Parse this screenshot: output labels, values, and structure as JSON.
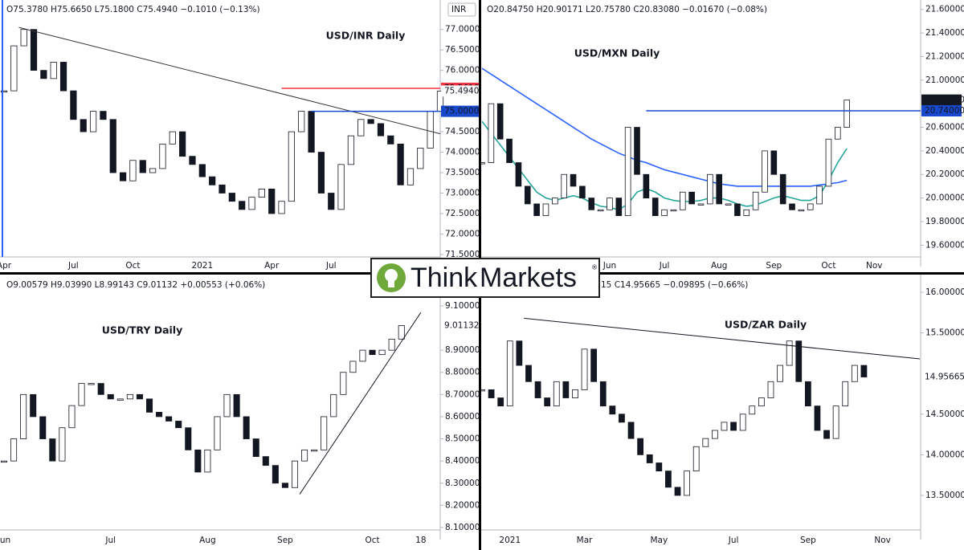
{
  "chart_data": [
    {
      "type": "candlestick",
      "title": "USD/INR Daily",
      "ohlc": "O75.3780 H75.6650 L75.1800 C75.4940 −0.1010 (−0.13%)",
      "currency": "INR",
      "categories": [
        "Apr",
        null,
        null,
        null,
        null,
        null,
        null,
        "Jul",
        null,
        null,
        null,
        null,
        null,
        "Oct",
        null,
        null,
        null,
        null,
        null,
        null,
        "2021",
        null,
        null,
        null,
        null,
        null,
        null,
        "Apr",
        null,
        null,
        null,
        null,
        null,
        "Jul",
        null,
        null,
        null,
        null,
        null,
        null,
        null,
        null,
        null,
        null,
        null
      ],
      "values": [
        75.5,
        76.6,
        77.0,
        76.0,
        75.8,
        76.2,
        75.5,
        74.8,
        74.5,
        75.0,
        74.8,
        73.5,
        73.3,
        73.8,
        73.5,
        73.6,
        74.2,
        74.5,
        73.9,
        73.7,
        73.4,
        73.2,
        73.0,
        72.8,
        72.6,
        72.9,
        73.1,
        72.5,
        72.8,
        74.5,
        75.0,
        74.0,
        73.0,
        72.6,
        73.7,
        74.4,
        74.8,
        74.7,
        74.4,
        74.2,
        73.2,
        73.6,
        74.1,
        75.0,
        75.494
      ],
      "ylim": [
        71.44,
        77.72
      ],
      "yticks": [
        {
          "value": 77,
          "label": "77.0000"
        },
        {
          "value": 76.5,
          "label": "76.5000"
        },
        {
          "value": 76,
          "label": "76.0000"
        },
        {
          "value": 74.5,
          "label": "74.5000"
        },
        {
          "value": 74,
          "label": "74.0000"
        },
        {
          "value": 73.5,
          "label": "73.5000"
        },
        {
          "value": 73,
          "label": "73.0000"
        },
        {
          "value": 72.5,
          "label": "72.5000"
        },
        {
          "value": 72,
          "label": "72.0000"
        },
        {
          "value": 71.5,
          "label": "71.5000"
        }
      ],
      "price_labels": [
        {
          "value": 75.561,
          "label": "75.5610",
          "color": "#f23645",
          "text_color": "#ffffff",
          "line_from": 28
        },
        {
          "value": 75.494,
          "label": "75.4940",
          "color": "#ffffff",
          "text_color": "#131722"
        },
        {
          "value": 75.0,
          "label": "75.0000",
          "color": "#1848cc",
          "text_color": "#ffffff",
          "line_from": 31
        }
      ],
      "trendlines": [
        {
          "from": [
            1.5,
            77.05
          ],
          "to": [
            44,
            74.45
          ],
          "color": "#333333"
        }
      ]
    },
    {
      "type": "candlestick",
      "title": "USD/MXN Daily",
      "ohlc": "O20.84750 H20.90171 L20.75780 C20.83080 −0.01670 (−0.08%)",
      "categories": [
        null,
        null,
        null,
        null,
        null,
        null,
        null,
        null,
        null,
        null,
        null,
        null,
        null,
        null,
        "Jun",
        null,
        null,
        null,
        null,
        null,
        "Jul",
        null,
        null,
        null,
        null,
        null,
        "Aug",
        null,
        null,
        null,
        null,
        null,
        "Sep",
        null,
        null,
        null,
        null,
        null,
        "Oct",
        null,
        null,
        null,
        null,
        "Nov",
        null,
        null,
        null,
        null,
        null
      ],
      "values": [
        20.3,
        20.8,
        20.5,
        20.3,
        20.1,
        19.95,
        19.85,
        19.95,
        20.0,
        20.2,
        20.1,
        20.0,
        19.9,
        19.9,
        20.0,
        19.85,
        20.6,
        20.2,
        20.0,
        19.85,
        19.9,
        19.9,
        20.05,
        19.95,
        19.95,
        20.2,
        19.95,
        19.95,
        19.85,
        19.9,
        20.05,
        20.4,
        20.2,
        19.95,
        19.9,
        19.9,
        19.95,
        20.1,
        20.5,
        20.6,
        20.8308,
        null,
        null,
        null,
        null,
        null,
        null,
        null,
        null
      ],
      "ma_lines": [
        {
          "color": "#2962ff",
          "values": [
            21.1,
            21.05,
            21.0,
            20.95,
            20.9,
            20.85,
            20.8,
            20.75,
            20.7,
            20.65,
            20.6,
            20.55,
            20.5,
            20.46,
            20.42,
            20.38,
            20.35,
            20.32,
            20.3,
            20.27,
            20.24,
            20.22,
            20.2,
            20.18,
            20.16,
            20.14,
            20.12,
            20.11,
            20.1,
            20.1,
            20.1,
            20.1,
            20.1,
            20.1,
            20.1,
            20.1,
            20.1,
            20.11,
            20.12,
            20.13,
            20.15
          ]
        },
        {
          "color": "#26a69a",
          "values": [
            20.65,
            20.55,
            20.45,
            20.35,
            20.25,
            20.15,
            20.05,
            20.0,
            19.98,
            20.0,
            20.02,
            20.0,
            19.96,
            19.93,
            19.92,
            19.9,
            19.95,
            20.05,
            20.08,
            20.05,
            20.0,
            19.98,
            19.97,
            19.97,
            19.98,
            20.0,
            20.0,
            19.98,
            19.95,
            19.93,
            19.94,
            19.97,
            20.0,
            20.02,
            20.0,
            19.98,
            19.98,
            20.02,
            20.15,
            20.3,
            20.42
          ]
        }
      ],
      "ylim": [
        19.5,
        21.68
      ],
      "yticks": [
        {
          "value": 21.6,
          "label": "21.60000"
        },
        {
          "value": 21.4,
          "label": "21.40000"
        },
        {
          "value": 21.2,
          "label": "21.20000"
        },
        {
          "value": 21.0,
          "label": "21.00000"
        },
        {
          "value": 20.6,
          "label": "20.60000"
        },
        {
          "value": 20.4,
          "label": "20.40000"
        },
        {
          "value": 20.2,
          "label": "20.20000"
        },
        {
          "value": 20.0,
          "label": "20.00000"
        },
        {
          "value": 19.8,
          "label": "19.80000"
        },
        {
          "value": 19.6,
          "label": "19.60000"
        }
      ],
      "price_labels": [
        {
          "value": 20.8308,
          "label": "20.83080",
          "color": "#131722",
          "text_color": "#ffffff"
        },
        {
          "value": 20.74,
          "label": "20.74000",
          "color": "#1848cc",
          "text_color": "#ffffff",
          "line_from": 18
        }
      ],
      "trendlines": []
    },
    {
      "type": "candlestick",
      "title": "USD/TRY Daily",
      "ohlc": "O9.00579 H9.03990 L8.99143 C9.01132 +0.00553 (+0.06%)",
      "categories": [
        "Jun",
        null,
        null,
        null,
        null,
        null,
        null,
        null,
        null,
        null,
        null,
        "Jul",
        null,
        null,
        null,
        null,
        null,
        null,
        null,
        null,
        null,
        "Aug",
        null,
        null,
        null,
        null,
        null,
        null,
        null,
        "Sep",
        null,
        null,
        null,
        null,
        null,
        null,
        null,
        null,
        "Oct",
        null,
        null,
        null,
        null,
        "18",
        null,
        null
      ],
      "values": [
        8.4,
        8.5,
        8.7,
        8.6,
        8.5,
        8.4,
        8.55,
        8.65,
        8.75,
        8.75,
        8.7,
        8.68,
        8.68,
        8.7,
        8.68,
        8.62,
        8.6,
        8.58,
        8.55,
        8.45,
        8.35,
        8.45,
        8.6,
        8.7,
        8.6,
        8.5,
        8.42,
        8.38,
        8.3,
        8.28,
        8.4,
        8.45,
        8.45,
        8.6,
        8.7,
        8.8,
        8.85,
        8.9,
        8.88,
        8.9,
        8.95,
        9.01132,
        null,
        null,
        null,
        null
      ],
      "ylim": [
        8.089,
        9.241
      ],
      "yticks": [
        {
          "value": 9.1,
          "label": "9.10000"
        },
        {
          "value": 8.9,
          "label": "8.90000"
        },
        {
          "value": 8.8,
          "label": "8.80000"
        },
        {
          "value": 8.7,
          "label": "8.70000"
        },
        {
          "value": 8.6,
          "label": "8.60000"
        },
        {
          "value": 8.5,
          "label": "8.50000"
        },
        {
          "value": 8.4,
          "label": "8.40000"
        },
        {
          "value": 8.3,
          "label": "8.30000"
        },
        {
          "value": 8.2,
          "label": "8.20000"
        },
        {
          "value": 8.1,
          "label": "8.10000"
        }
      ],
      "price_labels": [
        {
          "value": 9.01132,
          "label": "9.01132",
          "color": "#ffffff",
          "text_color": "#131722"
        }
      ],
      "trendlines": [
        {
          "from": [
            30.5,
            8.25
          ],
          "to": [
            43,
            9.07
          ],
          "color": "#131722"
        }
      ]
    },
    {
      "type": "candlestick",
      "title": "USD/ZAR Daily",
      "ohlc": "15 C14.95665 −0.09895 (−0.66%)",
      "categories": [
        null,
        null,
        null,
        "2021",
        null,
        null,
        null,
        null,
        null,
        null,
        null,
        "Mar",
        null,
        null,
        null,
        null,
        null,
        null,
        null,
        "May",
        null,
        null,
        null,
        null,
        null,
        null,
        null,
        "Jul",
        null,
        null,
        null,
        null,
        null,
        null,
        null,
        "Sep",
        null,
        null,
        null,
        null,
        null,
        null,
        null,
        "Nov",
        null,
        null,
        null,
        null
      ],
      "values": [
        14.8,
        14.7,
        14.6,
        15.4,
        15.1,
        14.9,
        14.7,
        14.6,
        14.9,
        14.7,
        14.8,
        15.3,
        14.9,
        14.6,
        14.5,
        14.4,
        14.2,
        14.0,
        13.9,
        13.8,
        13.6,
        13.5,
        13.8,
        14.1,
        14.2,
        14.3,
        14.4,
        14.3,
        14.5,
        14.6,
        14.7,
        14.9,
        15.1,
        15.4,
        14.9,
        14.6,
        14.3,
        14.2,
        14.6,
        14.9,
        15.1,
        14.95665,
        null,
        null,
        null,
        null,
        null,
        null
      ],
      "ylim": [
        13.075,
        16.217
      ],
      "yticks": [
        {
          "value": 16.0,
          "label": "16.00000"
        },
        {
          "value": 15.5,
          "label": "15.50000"
        },
        {
          "value": 14.5,
          "label": "14.50000"
        },
        {
          "value": 14.0,
          "label": "14.00000"
        },
        {
          "value": 13.5,
          "label": "13.50000"
        }
      ],
      "price_labels": [
        {
          "value": 14.95665,
          "label": "14.95665",
          "color": "#ffffff",
          "text_color": "#131722"
        }
      ],
      "trendlines": [
        {
          "from": [
            4.5,
            15.68
          ],
          "to": [
            47,
            15.18
          ],
          "color": "#131722"
        }
      ]
    }
  ],
  "logo": {
    "think": "Think",
    "markets": "Markets",
    "mark": "®"
  }
}
